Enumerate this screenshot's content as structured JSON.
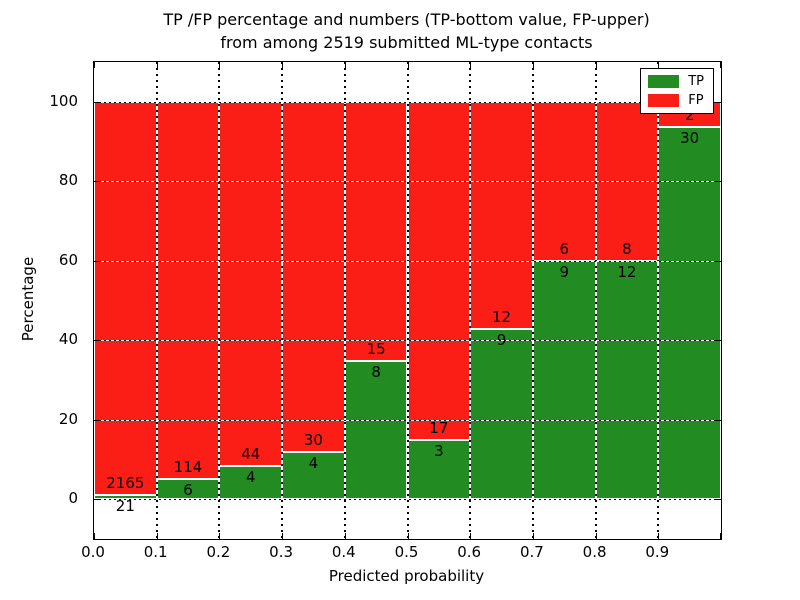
{
  "chart_data": {
    "type": "bar",
    "stacked": true,
    "normalized_percent": true,
    "title_line1": "TP /FP percentage and numbers (TP-bottom value, FP-upper)",
    "title_line2": "from among 2519 submitted ML-type contacts",
    "xlabel": "Predicted probability",
    "ylabel": "Percentage",
    "x_tick_labels": [
      "0.0",
      "0.1",
      "0.2",
      "0.3",
      "0.4",
      "0.5",
      "0.6",
      "0.7",
      "0.8",
      "0.9"
    ],
    "y_ticks": [
      0,
      20,
      40,
      60,
      80,
      100
    ],
    "xlim": [
      0.0,
      1.0
    ],
    "ylim": [
      -10,
      110
    ],
    "grid": true,
    "total_contacts": 2519,
    "colors": {
      "tp": "#228b22",
      "fp": "#fb1e17"
    },
    "legend": {
      "position": "upper-right",
      "entries": [
        {
          "label": "TP",
          "color": "#228b22"
        },
        {
          "label": "FP",
          "color": "#fb1e17"
        }
      ]
    },
    "bins": [
      {
        "range": "0.0-0.1",
        "tp": 21,
        "fp": 2165
      },
      {
        "range": "0.1-0.2",
        "tp": 6,
        "fp": 114
      },
      {
        "range": "0.2-0.3",
        "tp": 4,
        "fp": 44
      },
      {
        "range": "0.3-0.4",
        "tp": 4,
        "fp": 30
      },
      {
        "range": "0.4-0.5",
        "tp": 8,
        "fp": 15
      },
      {
        "range": "0.5-0.6",
        "tp": 3,
        "fp": 17
      },
      {
        "range": "0.6-0.7",
        "tp": 9,
        "fp": 12
      },
      {
        "range": "0.7-0.8",
        "tp": 9,
        "fp": 6
      },
      {
        "range": "0.8-0.9",
        "tp": 12,
        "fp": 8
      },
      {
        "range": "0.9-1.0",
        "tp": 30,
        "fp": 2
      }
    ],
    "tp_percent": [
      0.96,
      5.0,
      8.33,
      11.76,
      34.78,
      15.0,
      42.86,
      60.0,
      60.0,
      93.75
    ]
  }
}
